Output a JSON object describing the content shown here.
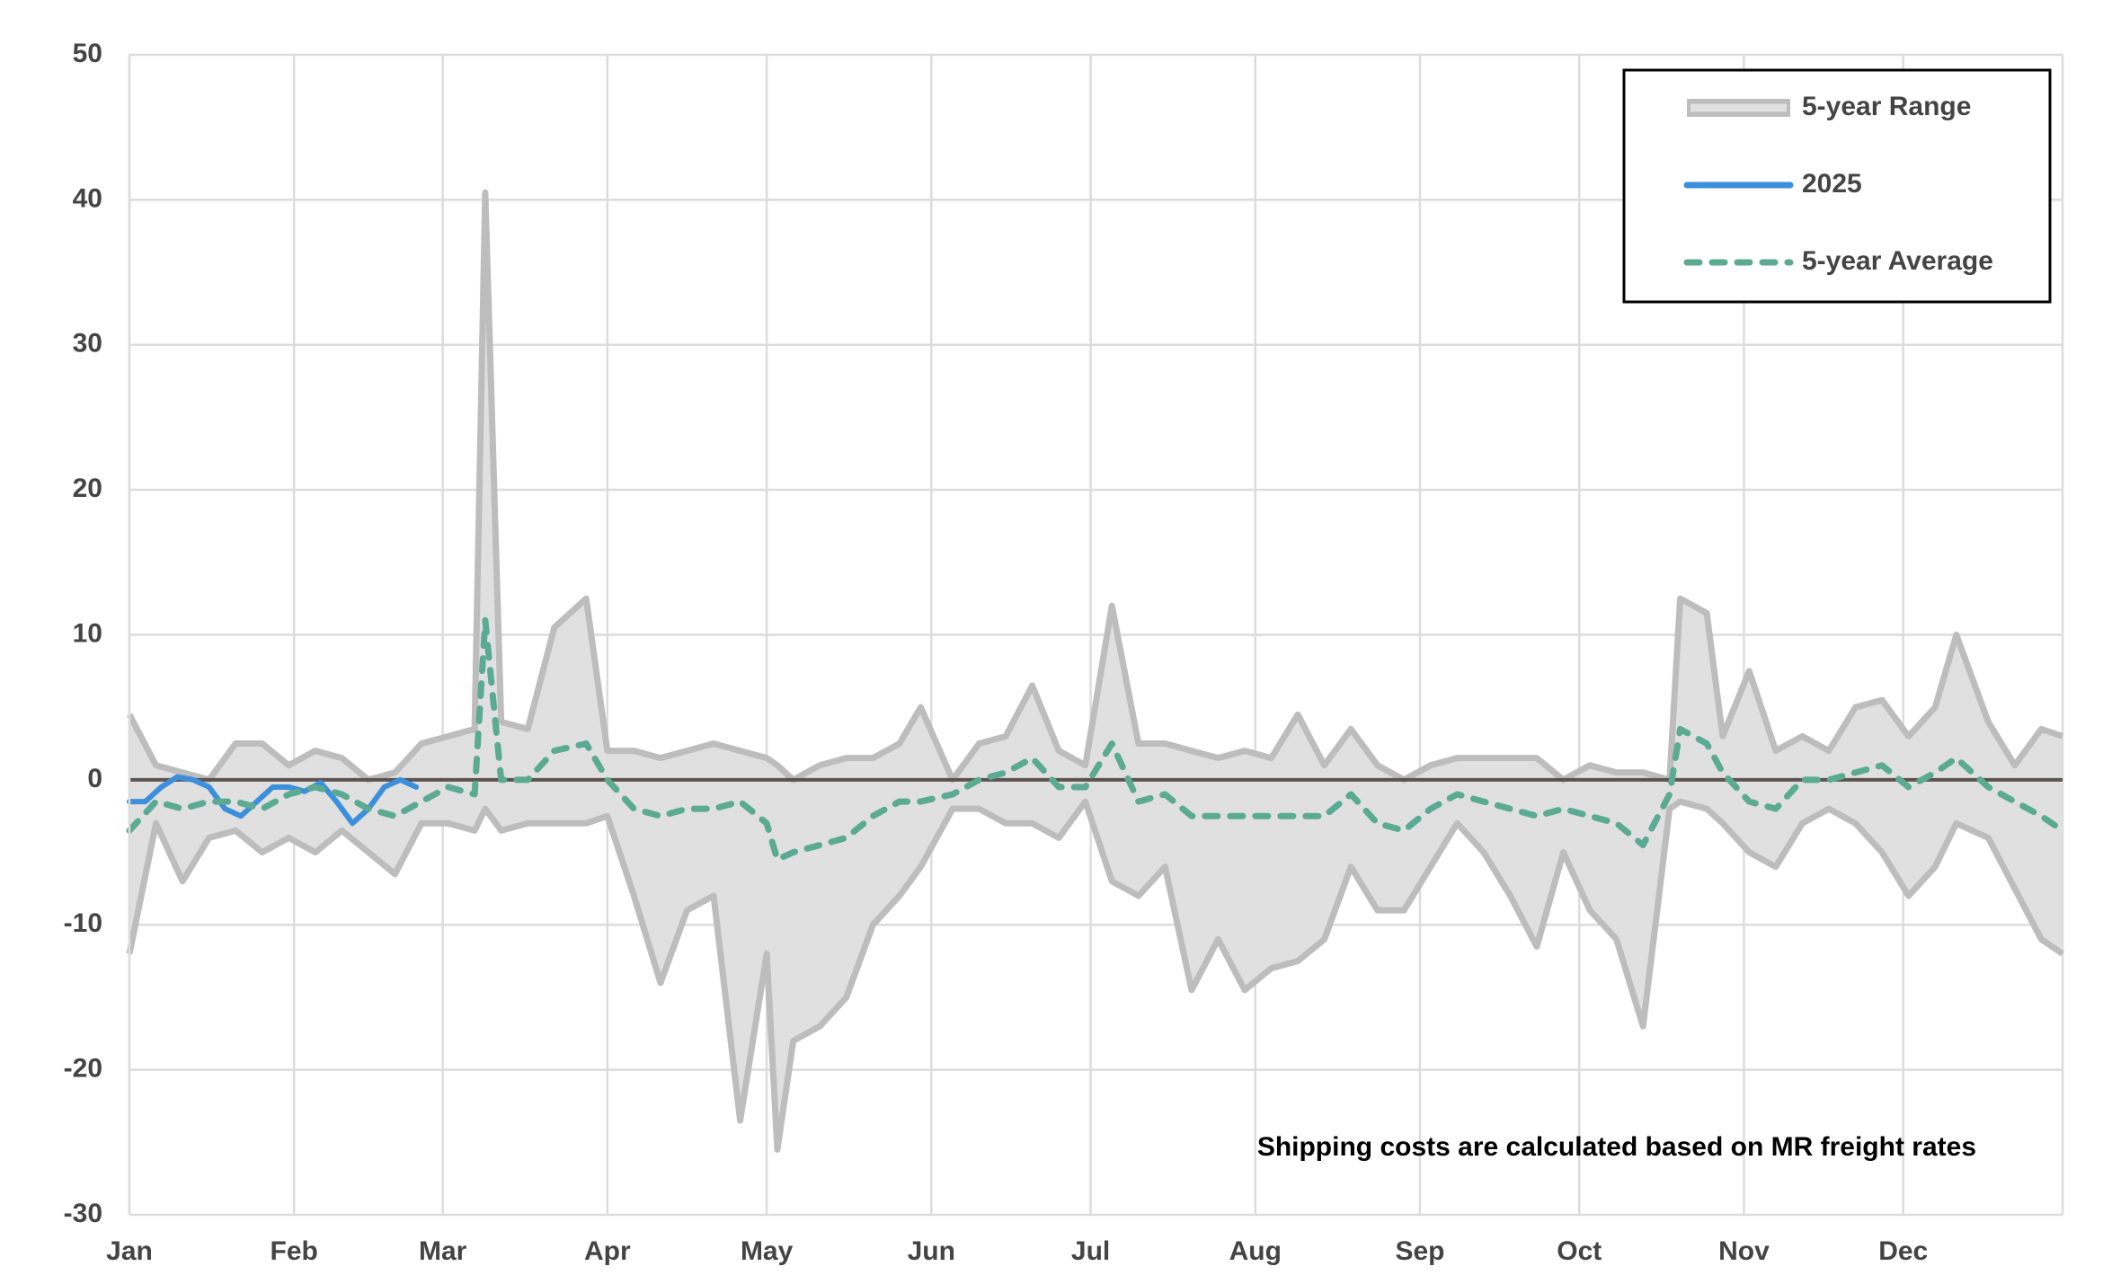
{
  "chart_data": {
    "type": "line",
    "annotation": "Shipping costs are calculated based on MR freight rates",
    "xlim": [
      0,
      364
    ],
    "xticks": [
      {
        "value": 0,
        "label": "Jan"
      },
      {
        "value": 31,
        "label": "Feb"
      },
      {
        "value": 59,
        "label": "Mar"
      },
      {
        "value": 90,
        "label": "Apr"
      },
      {
        "value": 120,
        "label": "May"
      },
      {
        "value": 151,
        "label": "Jun"
      },
      {
        "value": 181,
        "label": "Jul"
      },
      {
        "value": 212,
        "label": "Aug"
      },
      {
        "value": 243,
        "label": "Sep"
      },
      {
        "value": 273,
        "label": "Oct"
      },
      {
        "value": 304,
        "label": "Nov"
      },
      {
        "value": 334,
        "label": "Dec"
      }
    ],
    "ylim": [
      -30,
      50
    ],
    "yticks": [
      50,
      40,
      30,
      20,
      10,
      0,
      -10,
      -20,
      -30
    ],
    "baseline": 0,
    "grid": true,
    "legend": "upper right",
    "x": [
      0,
      5,
      10,
      15,
      20,
      25,
      30,
      35,
      40,
      45,
      50,
      55,
      60,
      65,
      67,
      70,
      75,
      80,
      86,
      90,
      95,
      100,
      105,
      110,
      115,
      120,
      122,
      125,
      130,
      135,
      140,
      145,
      149,
      155,
      160,
      165,
      170,
      175,
      180,
      185,
      190,
      195,
      200,
      205,
      210,
      215,
      220,
      225,
      230,
      235,
      240,
      245,
      250,
      255,
      260,
      265,
      270,
      275,
      280,
      285,
      290,
      292,
      297,
      300,
      305,
      310,
      315,
      320,
      325,
      330,
      335,
      340,
      344,
      350,
      355,
      360,
      364
    ],
    "series": [
      {
        "name": "5-year Range",
        "color": "#bdbdbd",
        "fill": "#e0e0e0",
        "upper": [
          4.5,
          1,
          0.5,
          0,
          2.5,
          2.5,
          1,
          2,
          1.5,
          0,
          0.5,
          2.5,
          3,
          3.5,
          40.5,
          4,
          3.5,
          10.5,
          12.5,
          2,
          2,
          1.5,
          2,
          2.5,
          2,
          1.5,
          1,
          0,
          1,
          1.5,
          1.5,
          2.5,
          5,
          0,
          2.5,
          3,
          6.5,
          2,
          1,
          12,
          2.5,
          2.5,
          2,
          1.5,
          2,
          1.5,
          4.5,
          1,
          3.5,
          1,
          0,
          1,
          1.5,
          1.5,
          1.5,
          1.5,
          0,
          1,
          0.5,
          0.5,
          0,
          12.5,
          11.5,
          3,
          7.5,
          2,
          3,
          2,
          5,
          5.5,
          3,
          5,
          10,
          4,
          1,
          3.5,
          3
        ],
        "lower": [
          -12,
          -3,
          -7,
          -4,
          -3.5,
          -5,
          -4,
          -5,
          -3.5,
          -5,
          -6.5,
          -3,
          -3,
          -3.5,
          -2,
          -3.5,
          -3,
          -3,
          -3,
          -2.5,
          -8,
          -14,
          -9,
          -8,
          -23.5,
          -12,
          -25.5,
          -18,
          -17,
          -15,
          -10,
          -8,
          -6,
          -2,
          -2,
          -3,
          -3,
          -4,
          -1.5,
          -7,
          -8,
          -6,
          -14.5,
          -11,
          -14.5,
          -13,
          -12.5,
          -11,
          -6,
          -9,
          -9,
          -6,
          -3,
          -5,
          -8,
          -11.5,
          -5,
          -9,
          -11,
          -17,
          -2,
          -1.5,
          -2,
          -3,
          -5,
          -6,
          -3,
          -2,
          -3,
          -5,
          -8,
          -6,
          -3,
          -4,
          -7.5,
          -11,
          -12
        ]
      },
      {
        "name": "2025",
        "color": "#3b8fdc",
        "x": [
          0,
          3,
          6,
          9,
          12,
          15,
          18,
          21,
          24,
          27,
          30,
          33,
          36,
          39,
          42,
          45,
          48,
          51,
          54
        ],
        "values": [
          -1.5,
          -1.5,
          -0.5,
          0.2,
          0,
          -0.5,
          -2,
          -2.5,
          -1.5,
          -0.5,
          -0.5,
          -0.8,
          -0.2,
          -1.5,
          -3,
          -2,
          -0.5,
          0,
          -0.5
        ]
      },
      {
        "name": "5-year Average",
        "color": "#5aab92",
        "dashed": true,
        "values": [
          -3.5,
          -1.5,
          -2,
          -1.5,
          -1.5,
          -2,
          -1,
          -0.5,
          -1,
          -2,
          -2.5,
          -1.5,
          -0.5,
          -1,
          11,
          0,
          0,
          2,
          2.5,
          0,
          -2,
          -2.5,
          -2,
          -2,
          -1.5,
          -3,
          -5.5,
          -5,
          -4.5,
          -4,
          -2.5,
          -1.5,
          -1.5,
          -1,
          0,
          0.5,
          1.5,
          -0.5,
          -0.5,
          2.5,
          -1.5,
          -1,
          -2.5,
          -2.5,
          -2.5,
          -2.5,
          -2.5,
          -2.5,
          -1,
          -3,
          -3.5,
          -2,
          -1,
          -1.5,
          -2,
          -2.5,
          -2,
          -2.5,
          -3,
          -4.5,
          -1,
          3.5,
          2.5,
          0.5,
          -1.5,
          -2,
          0,
          0,
          0.5,
          1,
          -0.5,
          0.5,
          1.5,
          -0.5,
          -1.5,
          -2.5,
          -3.5
        ]
      }
    ]
  }
}
